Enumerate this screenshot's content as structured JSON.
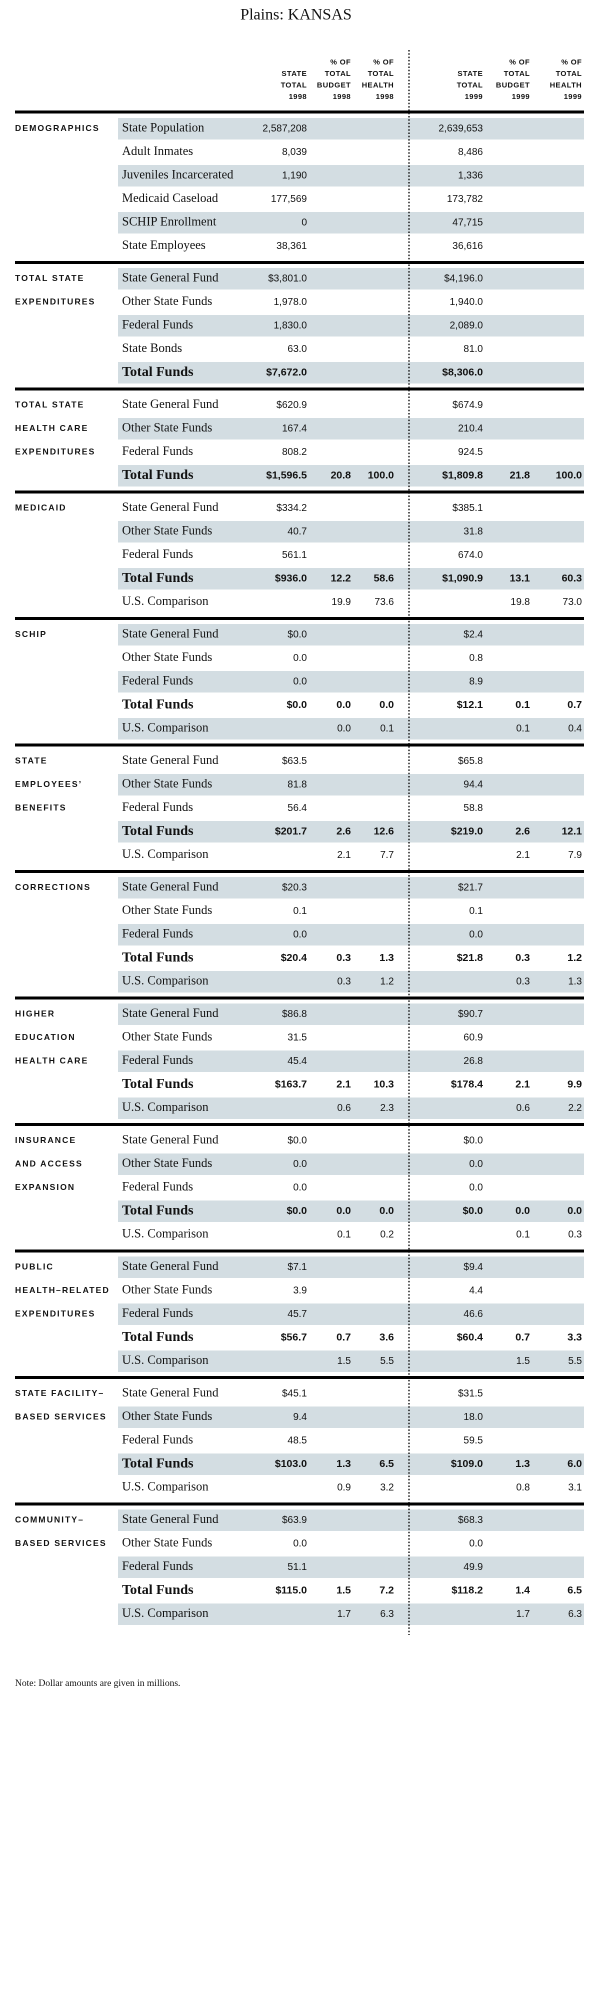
{
  "header": {
    "title": "Plains: KANSAS",
    "columns": [
      [
        "STATE",
        "TOTAL",
        "1998"
      ],
      [
        "% OF",
        "TOTAL",
        "BUDGET",
        "1998"
      ],
      [
        "% OF",
        "TOTAL",
        "HEALTH",
        "1998"
      ],
      [
        "STATE",
        "TOTAL",
        "1999"
      ],
      [
        "% OF",
        "TOTAL",
        "BUDGET",
        "1999"
      ],
      [
        "% OF",
        "TOTAL",
        "HEALTH",
        "1999"
      ]
    ]
  },
  "sections": [
    {
      "label": [
        "DEMOGRAPHICS"
      ],
      "rows": [
        [
          "State Population",
          "2,587,208",
          null,
          null,
          "2,639,653",
          null,
          null
        ],
        [
          "Adult Inmates",
          "8,039",
          null,
          null,
          "8,486",
          null,
          null
        ],
        [
          "Juveniles Incarcerated",
          "1,190",
          null,
          null,
          "1,336",
          null,
          null
        ],
        [
          "Medicaid Caseload",
          "177,569",
          null,
          null,
          "173,782",
          null,
          null
        ],
        [
          "SCHIP Enrollment",
          "0",
          null,
          null,
          "47,715",
          null,
          null
        ],
        [
          "State Employees",
          "38,361",
          null,
          null,
          "36,616",
          null,
          null
        ]
      ]
    },
    {
      "label": [
        "TOTAL STATE",
        "EXPENDITURES"
      ],
      "rows": [
        [
          "State General Fund",
          "$3,801.0",
          null,
          null,
          "$4,196.0",
          null,
          null
        ],
        [
          "Other State Funds",
          "1,978.0",
          null,
          null,
          "1,940.0",
          null,
          null
        ],
        [
          "Federal Funds",
          "1,830.0",
          null,
          null,
          "2,089.0",
          null,
          null
        ],
        [
          "State Bonds",
          "63.0",
          null,
          null,
          "81.0",
          null,
          null
        ],
        [
          "Total Funds",
          "$7,672.0",
          null,
          null,
          "$8,306.0",
          null,
          null
        ]
      ]
    },
    {
      "label": [
        "TOTAL STATE",
        "HEALTH CARE",
        "EXPENDITURES"
      ],
      "rows": [
        [
          "State General Fund",
          "$620.9",
          null,
          null,
          "$674.9",
          null,
          null
        ],
        [
          "Other State Funds",
          "167.4",
          null,
          null,
          "210.4",
          null,
          null
        ],
        [
          "Federal Funds",
          "808.2",
          null,
          null,
          "924.5",
          null,
          null
        ],
        [
          "Total Funds",
          "$1,596.5",
          "20.8",
          "100.0",
          "$1,809.8",
          "21.8",
          "100.0"
        ]
      ]
    },
    {
      "label": [
        "MEDICAID"
      ],
      "rows": [
        [
          "State General Fund",
          "$334.2",
          null,
          null,
          "$385.1",
          null,
          null
        ],
        [
          "Other State Funds",
          "40.7",
          null,
          null,
          "31.8",
          null,
          null
        ],
        [
          "Federal Funds",
          "561.1",
          null,
          null,
          "674.0",
          null,
          null
        ],
        [
          "Total Funds",
          "$936.0",
          "12.2",
          "58.6",
          "$1,090.9",
          "13.1",
          "60.3"
        ],
        [
          "U.S. Comparison",
          null,
          "19.9",
          "73.6",
          null,
          "19.8",
          "73.0"
        ]
      ]
    },
    {
      "label": [
        "SCHIP"
      ],
      "rows": [
        [
          "State General Fund",
          "$0.0",
          null,
          null,
          "$2.4",
          null,
          null
        ],
        [
          "Other State Funds",
          "0.0",
          null,
          null,
          "0.8",
          null,
          null
        ],
        [
          "Federal Funds",
          "0.0",
          null,
          null,
          "8.9",
          null,
          null
        ],
        [
          "Total Funds",
          "$0.0",
          "0.0",
          "0.0",
          "$12.1",
          "0.1",
          "0.7"
        ],
        [
          "U.S. Comparison",
          null,
          "0.0",
          "0.1",
          null,
          "0.1",
          "0.4"
        ]
      ]
    },
    {
      "label": [
        "STATE",
        "EMPLOYEES’",
        "BENEFITS"
      ],
      "rows": [
        [
          "State General Fund",
          "$63.5",
          null,
          null,
          "$65.8",
          null,
          null
        ],
        [
          "Other State Funds",
          "81.8",
          null,
          null,
          "94.4",
          null,
          null
        ],
        [
          "Federal Funds",
          "56.4",
          null,
          null,
          "58.8",
          null,
          null
        ],
        [
          "Total Funds",
          "$201.7",
          "2.6",
          "12.6",
          "$219.0",
          "2.6",
          "12.1"
        ],
        [
          "U.S. Comparison",
          null,
          "2.1",
          "7.7",
          null,
          "2.1",
          "7.9"
        ]
      ]
    },
    {
      "label": [
        "CORRECTIONS"
      ],
      "rows": [
        [
          "State General Fund",
          "$20.3",
          null,
          null,
          "$21.7",
          null,
          null
        ],
        [
          "Other State Funds",
          "0.1",
          null,
          null,
          "0.1",
          null,
          null
        ],
        [
          "Federal Funds",
          "0.0",
          null,
          null,
          "0.0",
          null,
          null
        ],
        [
          "Total Funds",
          "$20.4",
          "0.3",
          "1.3",
          "$21.8",
          "0.3",
          "1.2"
        ],
        [
          "U.S. Comparison",
          null,
          "0.3",
          "1.2",
          null,
          "0.3",
          "1.3"
        ]
      ]
    },
    {
      "label": [
        "HIGHER",
        "EDUCATION",
        "HEALTH CARE"
      ],
      "rows": [
        [
          "State General Fund",
          "$86.8",
          null,
          null,
          "$90.7",
          null,
          null
        ],
        [
          "Other State Funds",
          "31.5",
          null,
          null,
          "60.9",
          null,
          null
        ],
        [
          "Federal Funds",
          "45.4",
          null,
          null,
          "26.8",
          null,
          null
        ],
        [
          "Total Funds",
          "$163.7",
          "2.1",
          "10.3",
          "$178.4",
          "2.1",
          "9.9"
        ],
        [
          "U.S. Comparison",
          null,
          "0.6",
          "2.3",
          null,
          "0.6",
          "2.2"
        ]
      ]
    },
    {
      "label": [
        "INSURANCE",
        "AND ACCESS",
        "EXPANSION"
      ],
      "rows": [
        [
          "State General Fund",
          "$0.0",
          null,
          null,
          "$0.0",
          null,
          null
        ],
        [
          "Other State Funds",
          "0.0",
          null,
          null,
          "0.0",
          null,
          null
        ],
        [
          "Federal Funds",
          "0.0",
          null,
          null,
          "0.0",
          null,
          null
        ],
        [
          "Total Funds",
          "$0.0",
          "0.0",
          "0.0",
          "$0.0",
          "0.0",
          "0.0"
        ],
        [
          "U.S. Comparison",
          null,
          "0.1",
          "0.2",
          null,
          "0.1",
          "0.3"
        ]
      ]
    },
    {
      "label": [
        "PUBLIC",
        "HEALTH–RELATED",
        "EXPENDITURES"
      ],
      "rows": [
        [
          "State General Fund",
          "$7.1",
          null,
          null,
          "$9.4",
          null,
          null
        ],
        [
          "Other State Funds",
          "3.9",
          null,
          null,
          "4.4",
          null,
          null
        ],
        [
          "Federal Funds",
          "45.7",
          null,
          null,
          "46.6",
          null,
          null
        ],
        [
          "Total Funds",
          "$56.7",
          "0.7",
          "3.6",
          "$60.4",
          "0.7",
          "3.3"
        ],
        [
          "U.S. Comparison",
          null,
          "1.5",
          "5.5",
          null,
          "1.5",
          "5.5"
        ]
      ]
    },
    {
      "label": [
        "STATE FACILITY–",
        "BASED SERVICES"
      ],
      "rows": [
        [
          "State General Fund",
          "$45.1",
          null,
          null,
          "$31.5",
          null,
          null
        ],
        [
          "Other State Funds",
          "9.4",
          null,
          null,
          "18.0",
          null,
          null
        ],
        [
          "Federal Funds",
          "48.5",
          null,
          null,
          "59.5",
          null,
          null
        ],
        [
          "Total Funds",
          "$103.0",
          "1.3",
          "6.5",
          "$109.0",
          "1.3",
          "6.0"
        ],
        [
          "U.S. Comparison",
          null,
          "0.9",
          "3.2",
          null,
          "0.8",
          "3.1"
        ]
      ]
    },
    {
      "label": [
        "COMMUNITY–",
        "BASED SERVICES"
      ],
      "rows": [
        [
          "State General Fund",
          "$63.9",
          null,
          null,
          "$68.3",
          null,
          null
        ],
        [
          "Other State Funds",
          "0.0",
          null,
          null,
          "0.0",
          null,
          null
        ],
        [
          "Federal Funds",
          "51.1",
          null,
          null,
          "49.9",
          null,
          null
        ],
        [
          "Total Funds",
          "$115.0",
          "1.5",
          "7.2",
          "$118.2",
          "1.4",
          "6.5"
        ],
        [
          "U.S. Comparison",
          null,
          "1.7",
          "6.3",
          null,
          "1.7",
          "6.3"
        ]
      ]
    }
  ],
  "note": "Note: Dollar amounts are given in millions."
}
